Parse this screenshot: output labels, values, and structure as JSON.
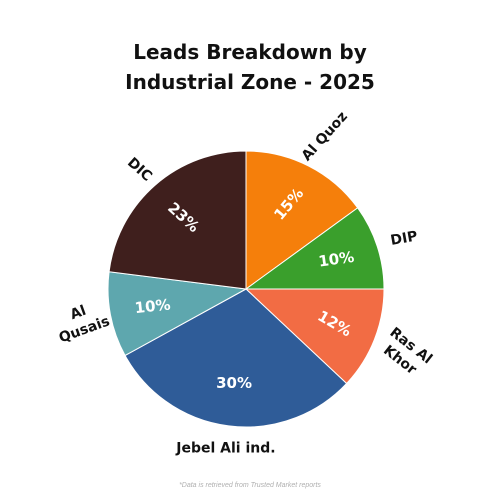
{
  "chart_data": {
    "type": "pie",
    "title_lines": [
      "Leads Breakdown by",
      "Industrial Zone - 2025"
    ],
    "slices": [
      {
        "label": "Al Quoz",
        "value": 15,
        "value_label": "15%",
        "color": "#F57F0B"
      },
      {
        "label": "DIP",
        "value": 10,
        "value_label": "10%",
        "color": "#3A9F2C"
      },
      {
        "label": "Ras Al Khor",
        "label_lines": [
          "Ras Al",
          "Khor"
        ],
        "value": 12,
        "value_label": "12%",
        "color": "#F26C44"
      },
      {
        "label": "Jebel Ali ind.",
        "value": 30,
        "value_label": "30%",
        "color": "#2F5C98"
      },
      {
        "label": "Al Qusais",
        "label_lines": [
          "Al",
          "Qusais"
        ],
        "value": 10,
        "value_label": "10%",
        "color": "#5EA7AE"
      },
      {
        "label": "DIC",
        "value": 23,
        "value_label": "23%",
        "color": "#3F1F1D"
      }
    ],
    "start": "12 o'clock, clockwise"
  },
  "footnote": "*Data is retrieved from Trusted Market reports"
}
